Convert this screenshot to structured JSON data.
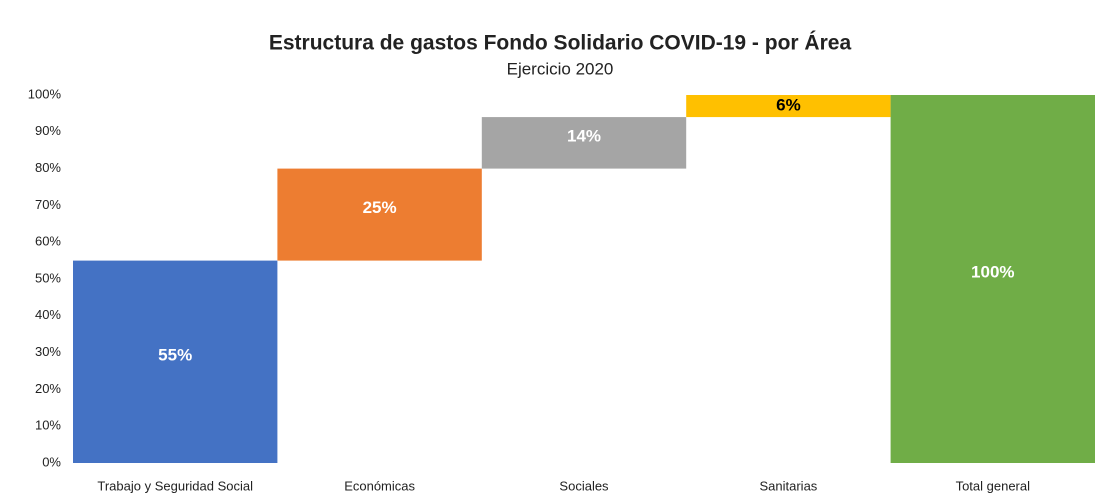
{
  "chart_data": {
    "type": "waterfall",
    "title": "Estructura de gastos Fondo Solidario COVID-19 - por Área",
    "subtitle": "Ejercicio 2020",
    "categories": [
      "Trabajo y Seguridad Social",
      "Económicas",
      "Sociales",
      "Sanitarias",
      "Total general"
    ],
    "values": [
      55,
      25,
      14,
      6,
      100
    ],
    "value_labels": [
      "55%",
      "25%",
      "14%",
      "6%",
      "100%"
    ],
    "is_total": [
      false,
      false,
      false,
      false,
      true
    ],
    "colors": [
      "#4472c4",
      "#ed7d31",
      "#a5a5a5",
      "#ffc000",
      "#70ad47"
    ],
    "label_colors": [
      "#ffffff",
      "#ffffff",
      "#ffffff",
      "#000000",
      "#ffffff"
    ],
    "ylim": [
      0,
      100
    ],
    "yticks": [
      {
        "value": 0,
        "label": "0%"
      },
      {
        "value": 10,
        "label": "10%"
      },
      {
        "value": 20,
        "label": "20%"
      },
      {
        "value": 30,
        "label": "30%"
      },
      {
        "value": 40,
        "label": "40%"
      },
      {
        "value": 50,
        "label": "50%"
      },
      {
        "value": 60,
        "label": "60%"
      },
      {
        "value": 70,
        "label": "70%"
      },
      {
        "value": 80,
        "label": "80%"
      },
      {
        "value": 90,
        "label": "90%"
      },
      {
        "value": 100,
        "label": "100%"
      }
    ],
    "grid": false
  }
}
